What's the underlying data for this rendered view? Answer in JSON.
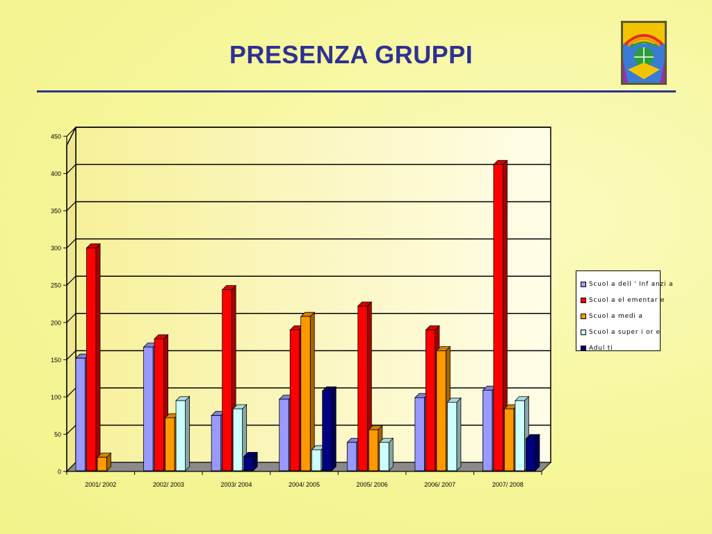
{
  "slide": {
    "title": "PRESENZA GRUPPI",
    "title_color": "#2e3192",
    "logo_icon": "school-emblem-icon"
  },
  "chart_data": {
    "type": "bar",
    "style": "3d-clustered",
    "categories": [
      "2001/ 2002",
      "2002/ 2003",
      "2003/ 2004",
      "2004/ 2005",
      "2005/ 2006",
      "2006/ 2007",
      "2007/ 2008"
    ],
    "series": [
      {
        "name": "Scuol a dell ' Inf anzi a",
        "color": "#9999ff",
        "values": [
          152,
          167,
          75,
          97,
          39,
          99,
          109
        ]
      },
      {
        "name": "Scuol a el ementar e",
        "color": "#ff0000",
        "values": [
          300,
          178,
          244,
          190,
          222,
          190,
          412
        ]
      },
      {
        "name": "Scuol a medi a",
        "color": "#ff9900",
        "values": [
          19,
          72,
          null,
          208,
          56,
          162,
          84
        ]
      },
      {
        "name": "Scuol a super i or e",
        "color": "#ccffff",
        "values": [
          null,
          95,
          84,
          29,
          39,
          93,
          95
        ]
      },
      {
        "name": "Adul ti",
        "color": "#000080",
        "values": [
          null,
          null,
          20,
          108,
          null,
          null,
          44
        ]
      }
    ],
    "yticks": [
      0,
      50,
      100,
      150,
      200,
      250,
      300,
      350,
      400,
      450
    ],
    "ylim": [
      0,
      450
    ],
    "grid": true,
    "legend_position": "right"
  }
}
